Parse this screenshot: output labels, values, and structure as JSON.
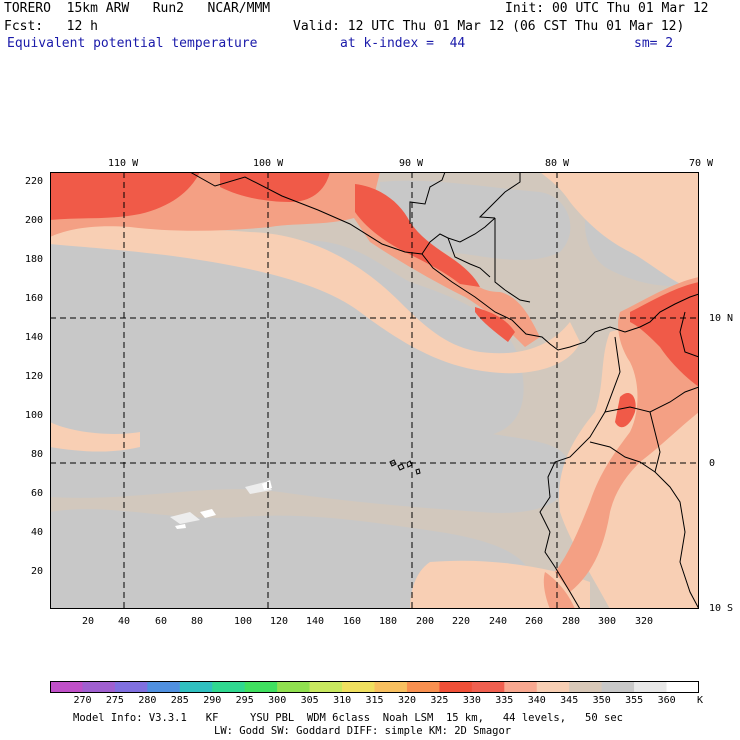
{
  "header": {
    "model": "TORERO  15km ARW   Run2   NCAR/MMM",
    "init": "Init: 00 UTC Thu 01 Mar 12",
    "fcst": "Fcst:   12 h",
    "valid": "Valid: 12 UTC Thu 01 Mar 12 (06 CST Thu 01 Mar 12)",
    "field": "Equivalent potential temperature",
    "level": "at k-index =  44",
    "smooth": "sm= 2"
  },
  "map": {
    "top_ticks": [
      "110 W",
      "100 W",
      "90 W",
      "80 W",
      "70 W"
    ],
    "right_ticks": [
      "10 N",
      "0",
      "10 S"
    ],
    "left_ticks": [
      "220",
      "200",
      "180",
      "160",
      "140",
      "120",
      "100",
      "80",
      "60",
      "40",
      "20"
    ],
    "bottom_ticks": [
      "20",
      "40",
      "60",
      "80",
      "100",
      "120",
      "140",
      "160",
      "180",
      "200",
      "220",
      "240",
      "260",
      "280",
      "300",
      "320"
    ]
  },
  "colorbar": {
    "labels": [
      "270",
      "275",
      "280",
      "285",
      "290",
      "295",
      "300",
      "305",
      "310",
      "315",
      "320",
      "325",
      "330",
      "335",
      "340",
      "345",
      "350",
      "355",
      "360"
    ],
    "unit": "K",
    "colors": [
      "#c050c8",
      "#a060d0",
      "#8070e0",
      "#5090e0",
      "#30c0c0",
      "#30d890",
      "#40e060",
      "#90e050",
      "#c8e860",
      "#f0e060",
      "#f8c060",
      "#f89050",
      "#f05038",
      "#f06050",
      "#f8a890",
      "#f8cfb4",
      "#d8c8b8",
      "#c8c8c8",
      "#e8e8e8",
      "#ffffff"
    ]
  },
  "footer": {
    "line1": "Model Info: V3.3.1   KF     YSU PBL  WDM 6class  Noah LSM  15 km,   44 levels,   50 sec",
    "line2": "LW: Godd SW: Goddard DIFF: simple KM: 2D Smagor"
  }
}
